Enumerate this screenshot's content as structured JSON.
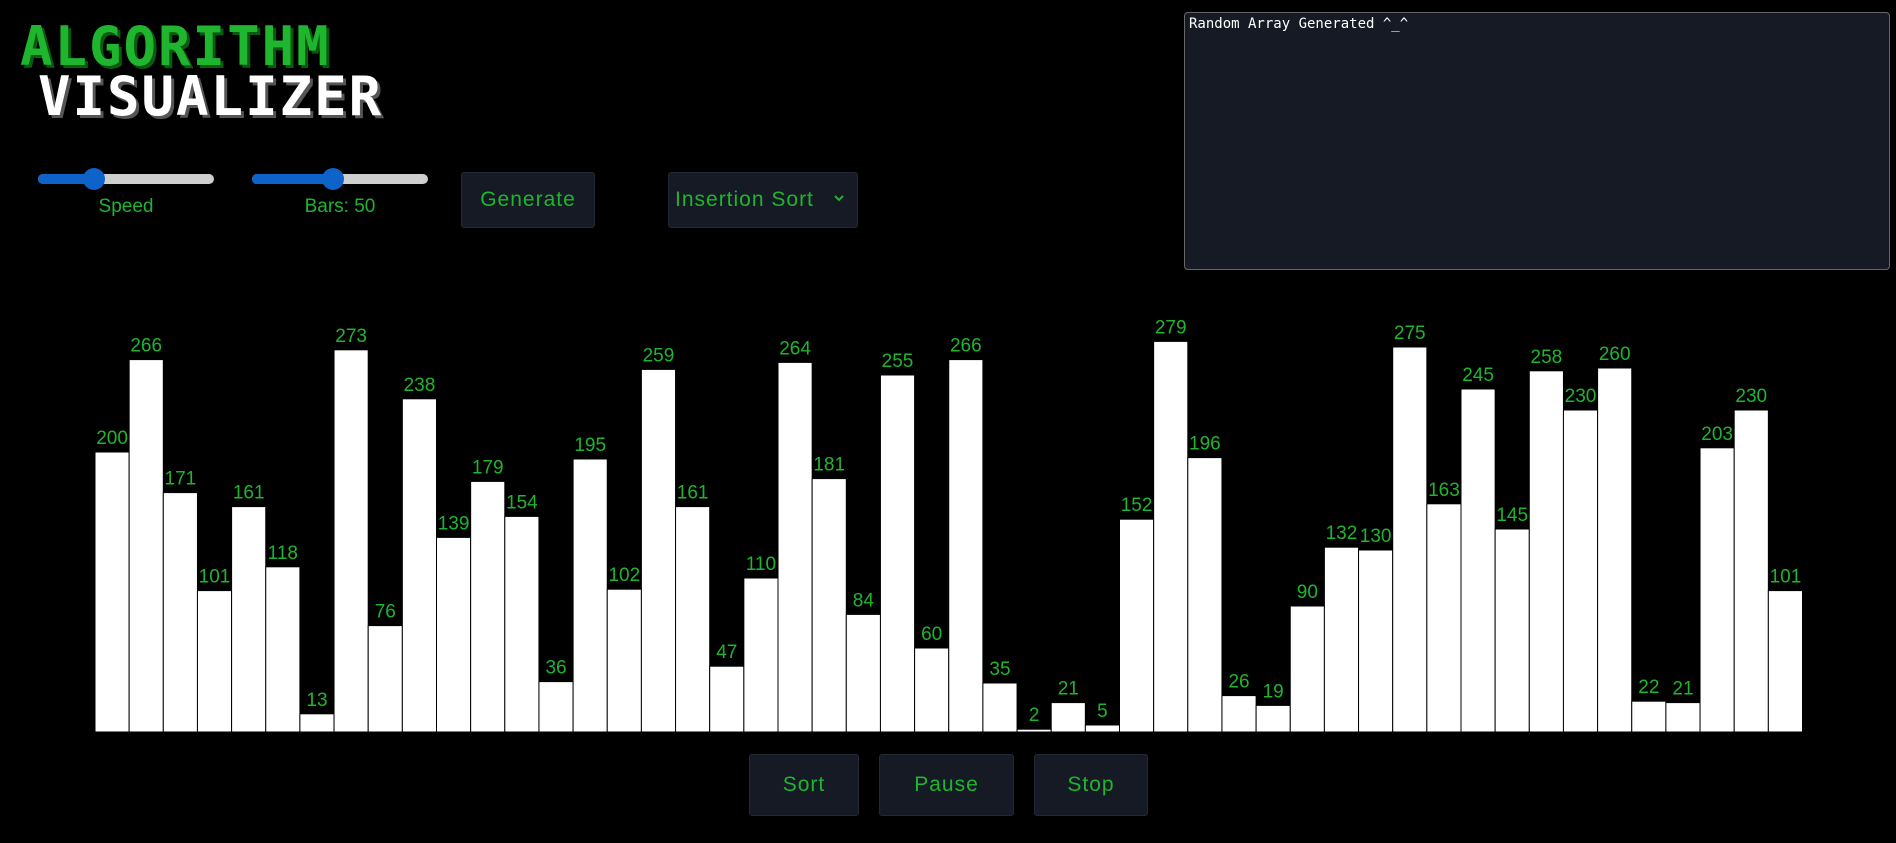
{
  "logo": {
    "line1": "ALGORITHM",
    "line2": "VISUALIZER"
  },
  "controls": {
    "speed": {
      "label": "Speed",
      "value": 0.32
    },
    "bars": {
      "label": "Bars: 50",
      "value": 0.46
    },
    "generate_label": "Generate",
    "algorithm_selected": "Insertion Sort"
  },
  "log": {
    "text": "Random Array Generated ^_^"
  },
  "actions": {
    "sort_label": "Sort",
    "pause_label": "Pause",
    "stop_label": "Stop"
  },
  "colors": {
    "accent": "#1fb52e",
    "bar": "#ffffff",
    "slider": "#0d63c9",
    "panel": "#161a24",
    "background": "#000000"
  },
  "chart_data": {
    "type": "bar",
    "values": [
      200,
      266,
      171,
      101,
      161,
      118,
      13,
      273,
      76,
      238,
      139,
      179,
      154,
      36,
      195,
      102,
      259,
      161,
      47,
      110,
      264,
      181,
      84,
      255,
      60,
      266,
      35,
      2,
      21,
      5,
      152,
      279,
      196,
      26,
      19,
      90,
      132,
      130,
      275,
      163,
      245,
      145,
      258,
      230,
      260,
      22,
      21,
      203,
      230,
      101
    ]
  }
}
